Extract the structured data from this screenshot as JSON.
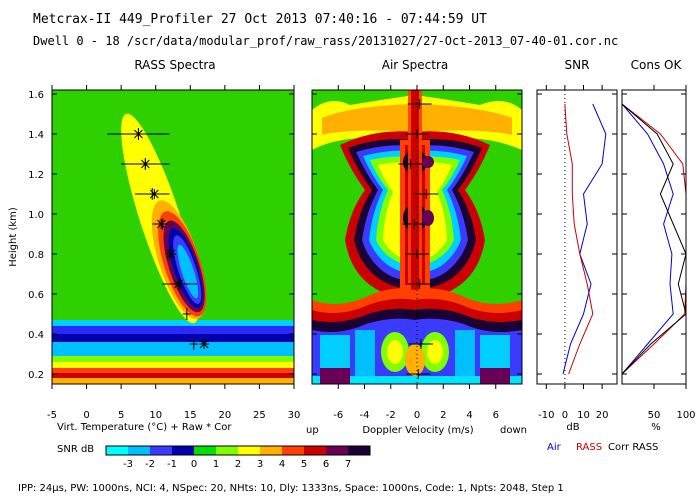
{
  "header": {
    "line1": "Metcrax-II  449_Profiler  27 Oct 2013  07:40:16 - 07:44:59 UT",
    "line2": "Dwell  0 - 18  /scr/data/modular_prof/raw_rass/20131027/27-Oct-2013_07-40-01.cor.nc"
  },
  "footer": {
    "text": "IPP: 24μs, PW: 1000ns, NCI: 4, NSpec: 20, NHts: 10, Dly: 1333ns, Space: 1000ns, Code: 1, Npts: 2048, Step 1"
  },
  "chart_data": [
    {
      "type": "heatmap",
      "title": "RASS Spectra",
      "xlabel": "Virt. Temperature (°C)  + Raw  * Cor",
      "ylabel": "Height (km)",
      "xlim": [
        -5,
        30
      ],
      "ylim": [
        0.15,
        1.62
      ],
      "xticks": [
        "-5",
        "0",
        "5",
        "10",
        "15",
        "20",
        "25",
        "30"
      ],
      "yticks": [
        "0.2",
        "0.4",
        "0.6",
        "0.8",
        "1.0",
        "1.2",
        "1.4",
        "1.6"
      ],
      "raw_points": [
        {
          "height": 1.4,
          "temp": 7.5,
          "err": 4.5
        },
        {
          "height": 1.25,
          "temp": 8.5,
          "err": 3.5
        },
        {
          "height": 1.1,
          "temp": 9.5,
          "err": 2.5
        },
        {
          "height": 0.95,
          "temp": 11.0,
          "err": 1.5
        },
        {
          "height": 0.8,
          "temp": 12.0,
          "err": 0.5
        },
        {
          "height": 0.65,
          "temp": 13.5,
          "err": 2.5
        },
        {
          "height": 0.5,
          "temp": 14.5,
          "err": 0.5
        },
        {
          "height": 0.35,
          "temp": 15.5,
          "err": 0
        }
      ],
      "cor_points": [
        {
          "height": 1.4,
          "temp": 7.5
        },
        {
          "height": 1.25,
          "temp": 8.5
        },
        {
          "height": 1.1,
          "temp": 9.8
        },
        {
          "height": 0.95,
          "temp": 10.8
        },
        {
          "height": 0.8,
          "temp": 12.2
        },
        {
          "height": 0.65,
          "temp": 13.3
        },
        {
          "height": 0.35,
          "temp": 17.0
        }
      ]
    },
    {
      "type": "heatmap",
      "title": "Air Spectra",
      "xlabel": "Doppler Velocity (m/s)",
      "xlabel_left": "up",
      "xlabel_right": "down",
      "xlim": [
        -8,
        8
      ],
      "ylim": [
        0.15,
        1.62
      ],
      "xticks": [
        "-6",
        "-4",
        "-2",
        "0",
        "2",
        "4",
        "6"
      ],
      "points": [
        {
          "height": 1.55,
          "vel": 0.2
        },
        {
          "height": 1.4,
          "vel": 0.0
        },
        {
          "height": 1.25,
          "vel": -0.5
        },
        {
          "height": 1.1,
          "vel": 0.7
        },
        {
          "height": 0.95,
          "vel": -0.2
        },
        {
          "height": 0.8,
          "vel": 0.0
        },
        {
          "height": 0.65,
          "vel": 0.2
        },
        {
          "height": 0.5,
          "vel": 0.0
        },
        {
          "height": 0.35,
          "vel": 0.3
        },
        {
          "height": 0.2,
          "vel": 0.1
        }
      ]
    },
    {
      "type": "line",
      "title": "SNR",
      "xlabel": "dB",
      "xlim": [
        -15,
        28
      ],
      "xticks": [
        "-10",
        "0",
        "10",
        "20"
      ],
      "series": [
        {
          "name": "Air",
          "color": "#0000cc",
          "x": [
            15,
            22,
            20,
            10,
            12,
            8,
            14,
            10,
            3,
            -1
          ],
          "y": [
            1.55,
            1.4,
            1.25,
            1.1,
            0.95,
            0.8,
            0.65,
            0.5,
            0.35,
            0.2
          ]
        },
        {
          "name": "RASS",
          "color": "#cc0000",
          "x": [
            0,
            1,
            4,
            4,
            5,
            8,
            12,
            15,
            8,
            2
          ],
          "y": [
            1.55,
            1.4,
            1.25,
            1.1,
            0.95,
            0.8,
            0.65,
            0.5,
            0.35,
            0.2
          ]
        }
      ]
    },
    {
      "type": "line",
      "title": "Cons OK",
      "xlabel": "%",
      "xlim": [
        0,
        100
      ],
      "xticks": [
        "50",
        "100"
      ],
      "series": [
        {
          "name": "Air",
          "color": "#0000cc",
          "x": [
            0,
            40,
            65,
            80,
            65,
            78,
            75,
            80,
            40,
            0
          ],
          "y": [
            1.55,
            1.4,
            1.25,
            1.1,
            0.95,
            0.8,
            0.65,
            0.5,
            0.35,
            0.2
          ]
        },
        {
          "name": "RASS",
          "color": "#cc0000",
          "x": [
            0,
            60,
            95,
            100,
            100,
            100,
            100,
            98,
            50,
            0
          ],
          "y": [
            1.55,
            1.4,
            1.25,
            1.1,
            0.95,
            0.8,
            0.65,
            0.5,
            0.35,
            0.2
          ]
        },
        {
          "name": "Corr RASS",
          "color": "#000000",
          "x": [
            0,
            55,
            80,
            60,
            80,
            100,
            88,
            100,
            45,
            0
          ],
          "y": [
            1.55,
            1.4,
            1.25,
            1.1,
            0.95,
            0.8,
            0.65,
            0.5,
            0.35,
            0.2
          ]
        }
      ]
    }
  ],
  "legend": {
    "air": "Air",
    "rass": "RASS",
    "corr": "Corr RASS"
  },
  "colorbar": {
    "label": "SNR dB",
    "ticks": [
      "-3",
      "-2",
      "-1",
      "0",
      "1",
      "2",
      "3",
      "4",
      "5",
      "6",
      "7"
    ],
    "colors": [
      "#00ffff",
      "#00bfff",
      "#3b3bff",
      "#0000aa",
      "#00e000",
      "#80ff00",
      "#ffff00",
      "#ffb000",
      "#ff4000",
      "#cc0000",
      "#6a0055",
      "#1a0033"
    ]
  }
}
